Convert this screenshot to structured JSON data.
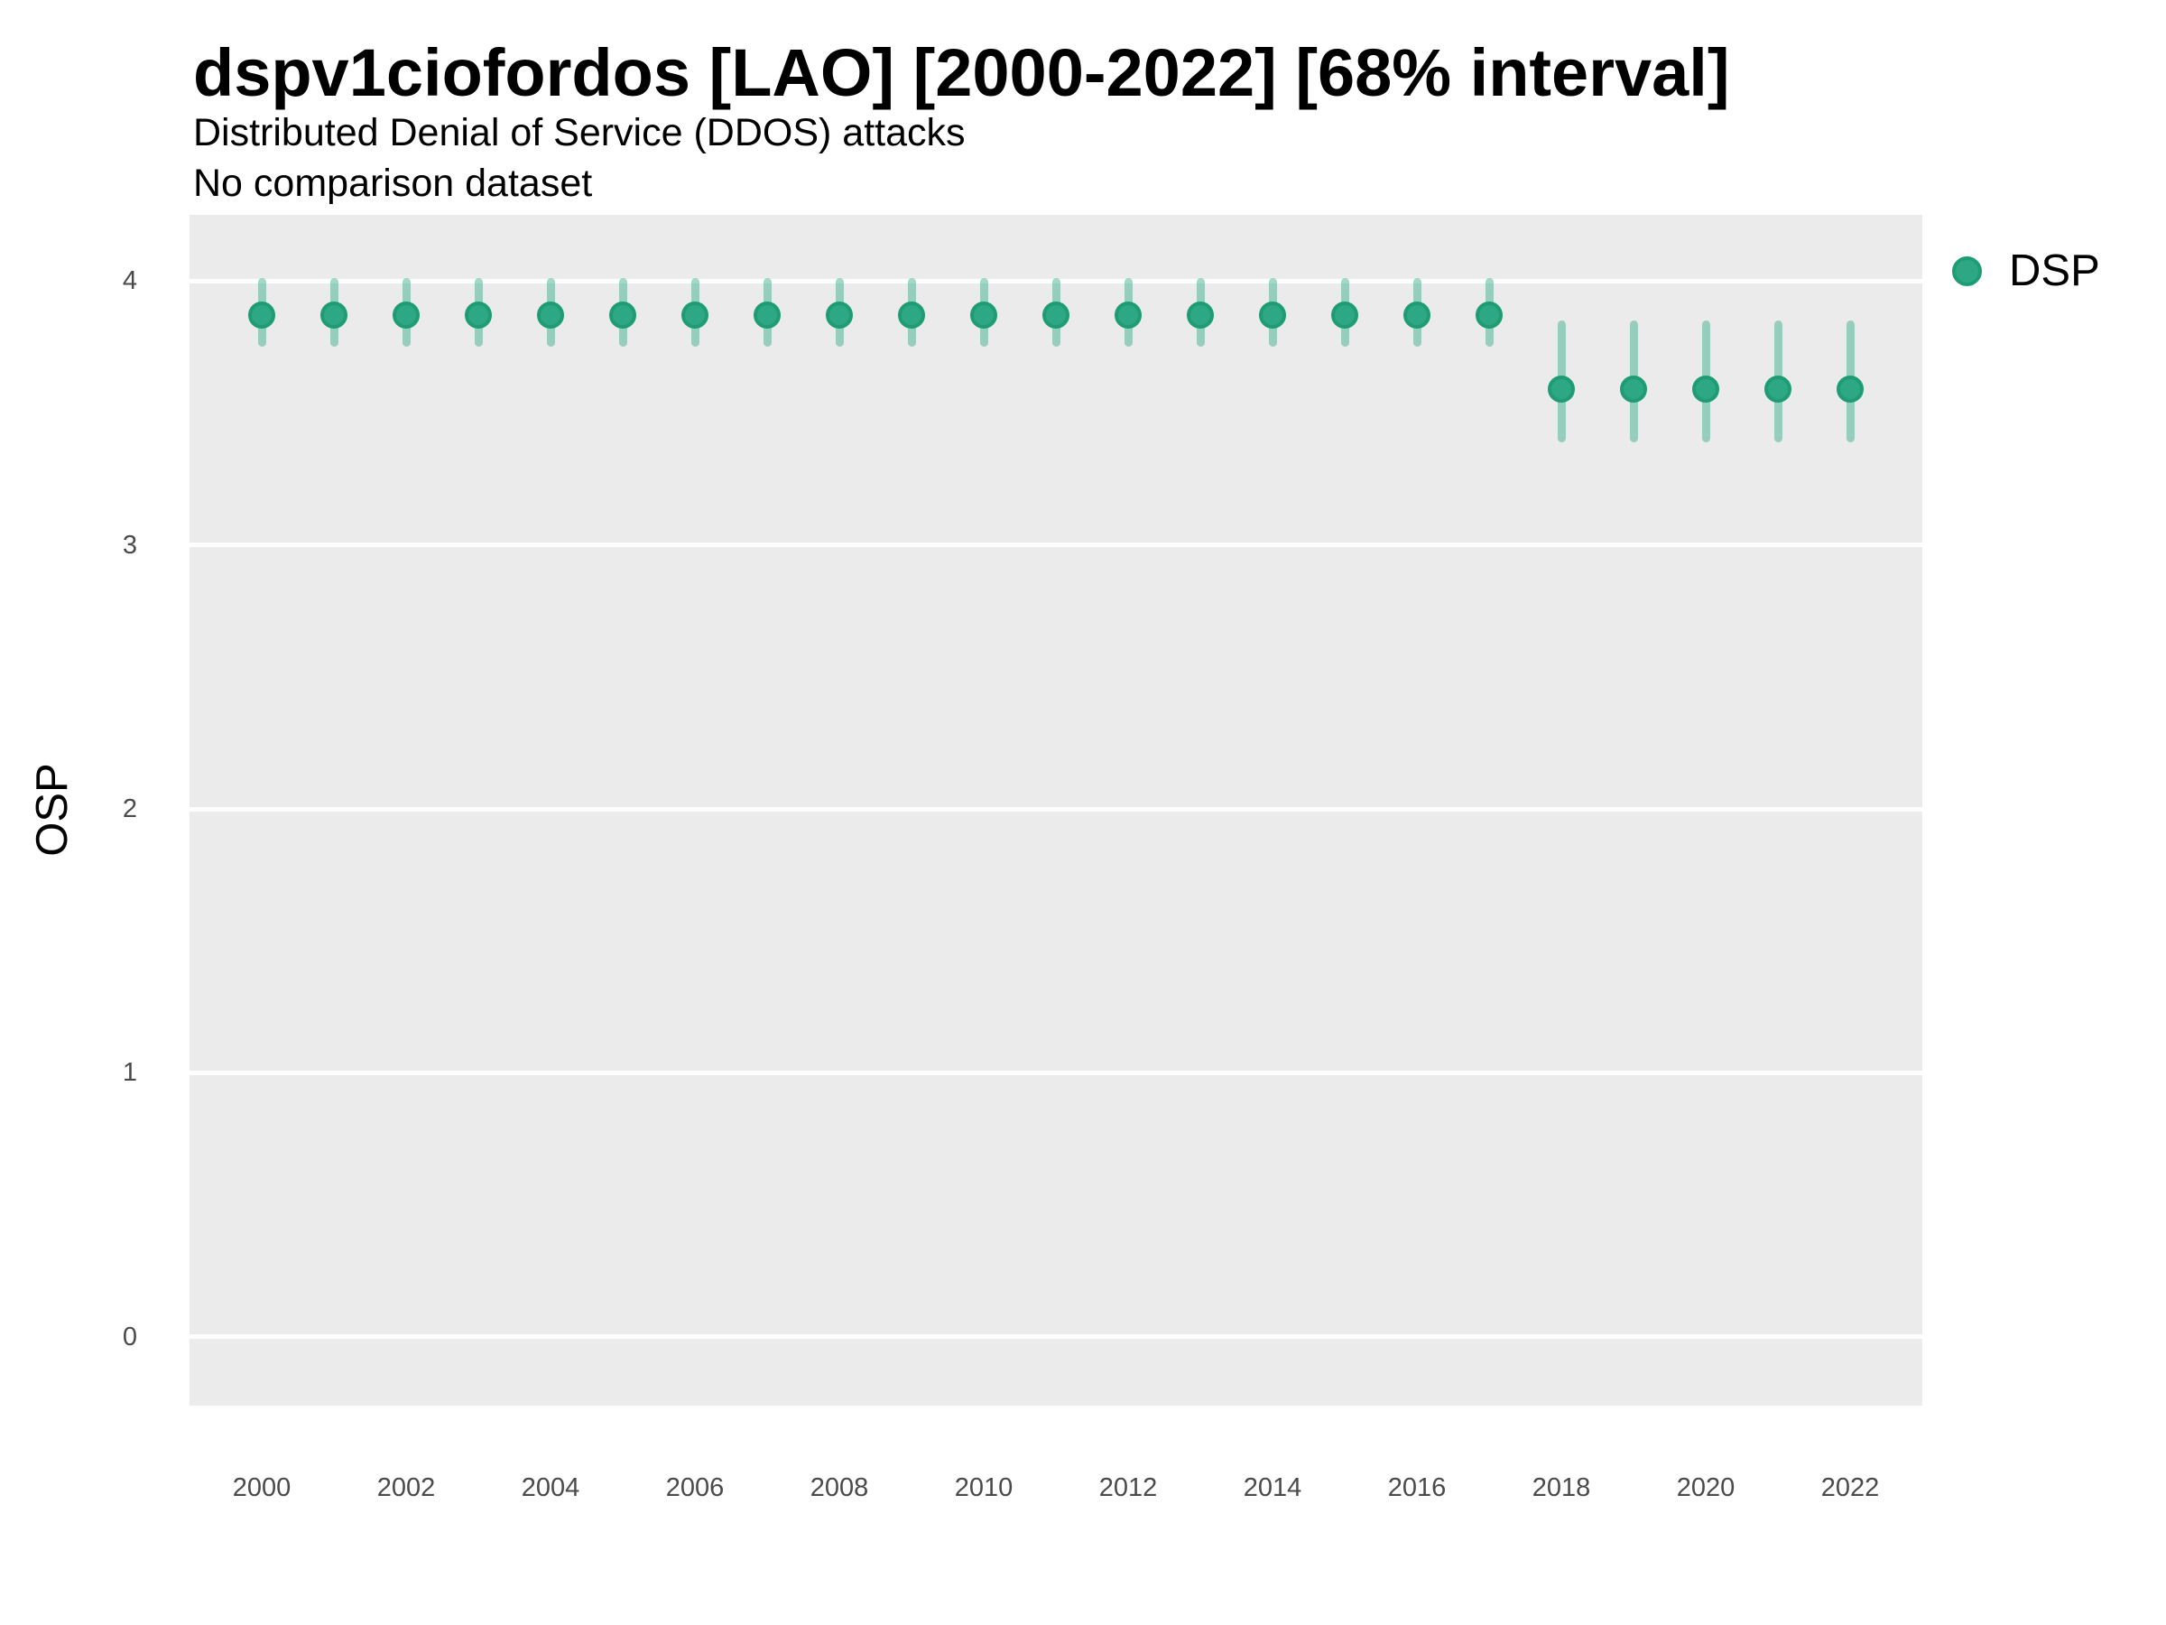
{
  "header": {
    "title": "dspv1ciofordos [LAO] [2000-2022] [68% interval]",
    "subtitle": "Distributed Denial of Service (DDOS) attacks",
    "note": "No comparison dataset"
  },
  "axes": {
    "y_label": "OSP",
    "y_tick_labels": [
      "0",
      "1",
      "2",
      "3",
      "4"
    ],
    "x_tick_labels": [
      "2000",
      "2002",
      "2004",
      "2006",
      "2008",
      "2010",
      "2012",
      "2014",
      "2016",
      "2018",
      "2020",
      "2022"
    ]
  },
  "legend": {
    "position": "right",
    "items": [
      {
        "label": "DSP",
        "symbol": "circle",
        "color": "#2EA884"
      }
    ]
  },
  "colors": {
    "panel_background": "#EBEBEB",
    "gridline": "#FFFFFF",
    "point_fill": "#2EA884",
    "point_stroke": "#1E9C74",
    "interval_bar": "rgba(46,168,132,0.45)",
    "axis_text": "#4a4a4a",
    "title_text": "#000000"
  },
  "chart_data": {
    "type": "scatter",
    "title": "dspv1ciofordos [LAO] [2000-2022] [68% interval]",
    "subtitle": "Distributed Denial of Service (DDOS) attacks",
    "annotation": "No comparison dataset",
    "xlabel": "",
    "ylabel": "OSP",
    "interval": "68%",
    "ylim": [
      -0.26,
      4.25
    ],
    "y_ticks": [
      0,
      1,
      2,
      3,
      4
    ],
    "grid": "major-horizontal",
    "legend_position": "right",
    "series": [
      {
        "name": "DSP",
        "x": [
          2000,
          2001,
          2002,
          2003,
          2004,
          2005,
          2006,
          2007,
          2008,
          2009,
          2010,
          2011,
          2012,
          2013,
          2014,
          2015,
          2016,
          2017,
          2018,
          2019,
          2020,
          2021,
          2022
        ],
        "y": [
          3.87,
          3.87,
          3.87,
          3.87,
          3.87,
          3.87,
          3.87,
          3.87,
          3.87,
          3.87,
          3.87,
          3.87,
          3.87,
          3.87,
          3.87,
          3.87,
          3.87,
          3.87,
          3.59,
          3.59,
          3.59,
          3.59,
          3.59
        ],
        "y_lo": [
          3.75,
          3.75,
          3.75,
          3.75,
          3.75,
          3.75,
          3.75,
          3.75,
          3.75,
          3.75,
          3.75,
          3.75,
          3.75,
          3.75,
          3.75,
          3.75,
          3.75,
          3.75,
          3.39,
          3.39,
          3.39,
          3.39,
          3.39
        ],
        "y_hi": [
          4.01,
          4.01,
          4.01,
          4.01,
          4.01,
          4.01,
          4.01,
          4.01,
          4.01,
          4.01,
          4.01,
          4.01,
          4.01,
          4.01,
          4.01,
          4.01,
          4.01,
          4.01,
          3.85,
          3.85,
          3.85,
          3.85,
          3.85
        ]
      }
    ]
  }
}
